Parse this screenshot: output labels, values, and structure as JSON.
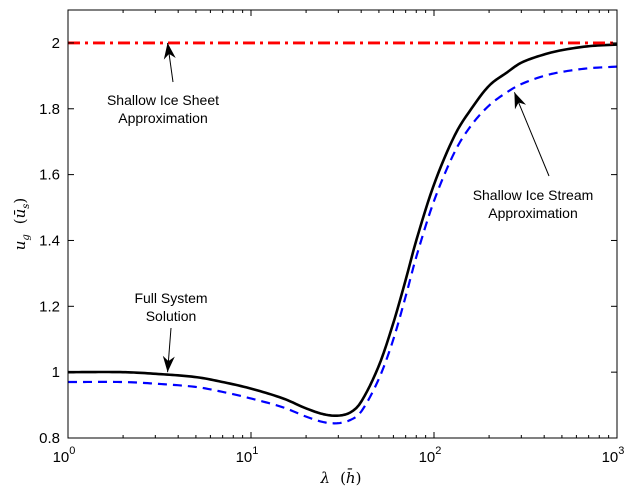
{
  "chart_data": {
    "type": "line",
    "title": "",
    "xlabel": "λ (h̄)",
    "ylabel": "u_g (ū_s)",
    "xscale": "log",
    "xlim": [
      1,
      1000
    ],
    "ylim": [
      0.8,
      2.1
    ],
    "grid": false,
    "x_ticks": [
      {
        "value": 1,
        "base": "10",
        "exp": "0"
      },
      {
        "value": 10,
        "base": "10",
        "exp": "1"
      },
      {
        "value": 100,
        "base": "10",
        "exp": "2"
      },
      {
        "value": 1000,
        "base": "10",
        "exp": "3"
      }
    ],
    "y_ticks": [
      {
        "value": 0.8,
        "label": "0.8"
      },
      {
        "value": 1.0,
        "label": "1"
      },
      {
        "value": 1.2,
        "label": "1.2"
      },
      {
        "value": 1.4,
        "label": "1.4"
      },
      {
        "value": 1.6,
        "label": "1.6"
      },
      {
        "value": 1.8,
        "label": "1.8"
      },
      {
        "value": 2.0,
        "label": "2"
      }
    ],
    "series": [
      {
        "name": "Full System Solution",
        "color": "#000000",
        "style": "solid",
        "x": [
          1,
          2,
          3,
          5,
          7,
          10,
          15,
          20,
          25,
          30,
          35,
          40,
          50,
          60,
          70,
          80,
          100,
          130,
          160,
          200,
          250,
          300,
          400,
          500,
          700,
          1000
        ],
        "y": [
          1.0,
          1.0,
          0.995,
          0.985,
          0.97,
          0.95,
          0.92,
          0.89,
          0.872,
          0.868,
          0.878,
          0.91,
          1.02,
          1.15,
          1.28,
          1.4,
          1.57,
          1.72,
          1.8,
          1.87,
          1.91,
          1.94,
          1.965,
          1.978,
          1.99,
          1.995
        ]
      },
      {
        "name": "Shallow Ice Stream Approximation",
        "color": "#0000ff",
        "style": "dashed",
        "x": [
          1,
          2,
          3,
          5,
          7,
          10,
          15,
          20,
          25,
          30,
          35,
          40,
          50,
          60,
          70,
          80,
          100,
          130,
          160,
          200,
          250,
          300,
          400,
          500,
          700,
          1000
        ],
        "y": [
          0.97,
          0.97,
          0.965,
          0.955,
          0.94,
          0.92,
          0.893,
          0.865,
          0.848,
          0.845,
          0.855,
          0.88,
          0.98,
          1.1,
          1.23,
          1.35,
          1.52,
          1.67,
          1.75,
          1.81,
          1.85,
          1.875,
          1.9,
          1.912,
          1.923,
          1.928
        ]
      },
      {
        "name": "Shallow Ice Sheet Approximation",
        "color": "#ff0000",
        "style": "dashdot",
        "x": [
          1,
          1000
        ],
        "y": [
          2.0,
          2.0
        ]
      }
    ],
    "annotations": [
      {
        "lines": [
          "Shallow Ice Sheet",
          "Approximation"
        ],
        "arrow_to": [
          3.5,
          2.0
        ]
      },
      {
        "lines": [
          "Full System",
          "Solution"
        ],
        "arrow_to": [
          3.5,
          1.0
        ]
      },
      {
        "lines": [
          "Shallow Ice Stream",
          "Approximation"
        ],
        "arrow_to": [
          275,
          1.85
        ]
      }
    ]
  }
}
